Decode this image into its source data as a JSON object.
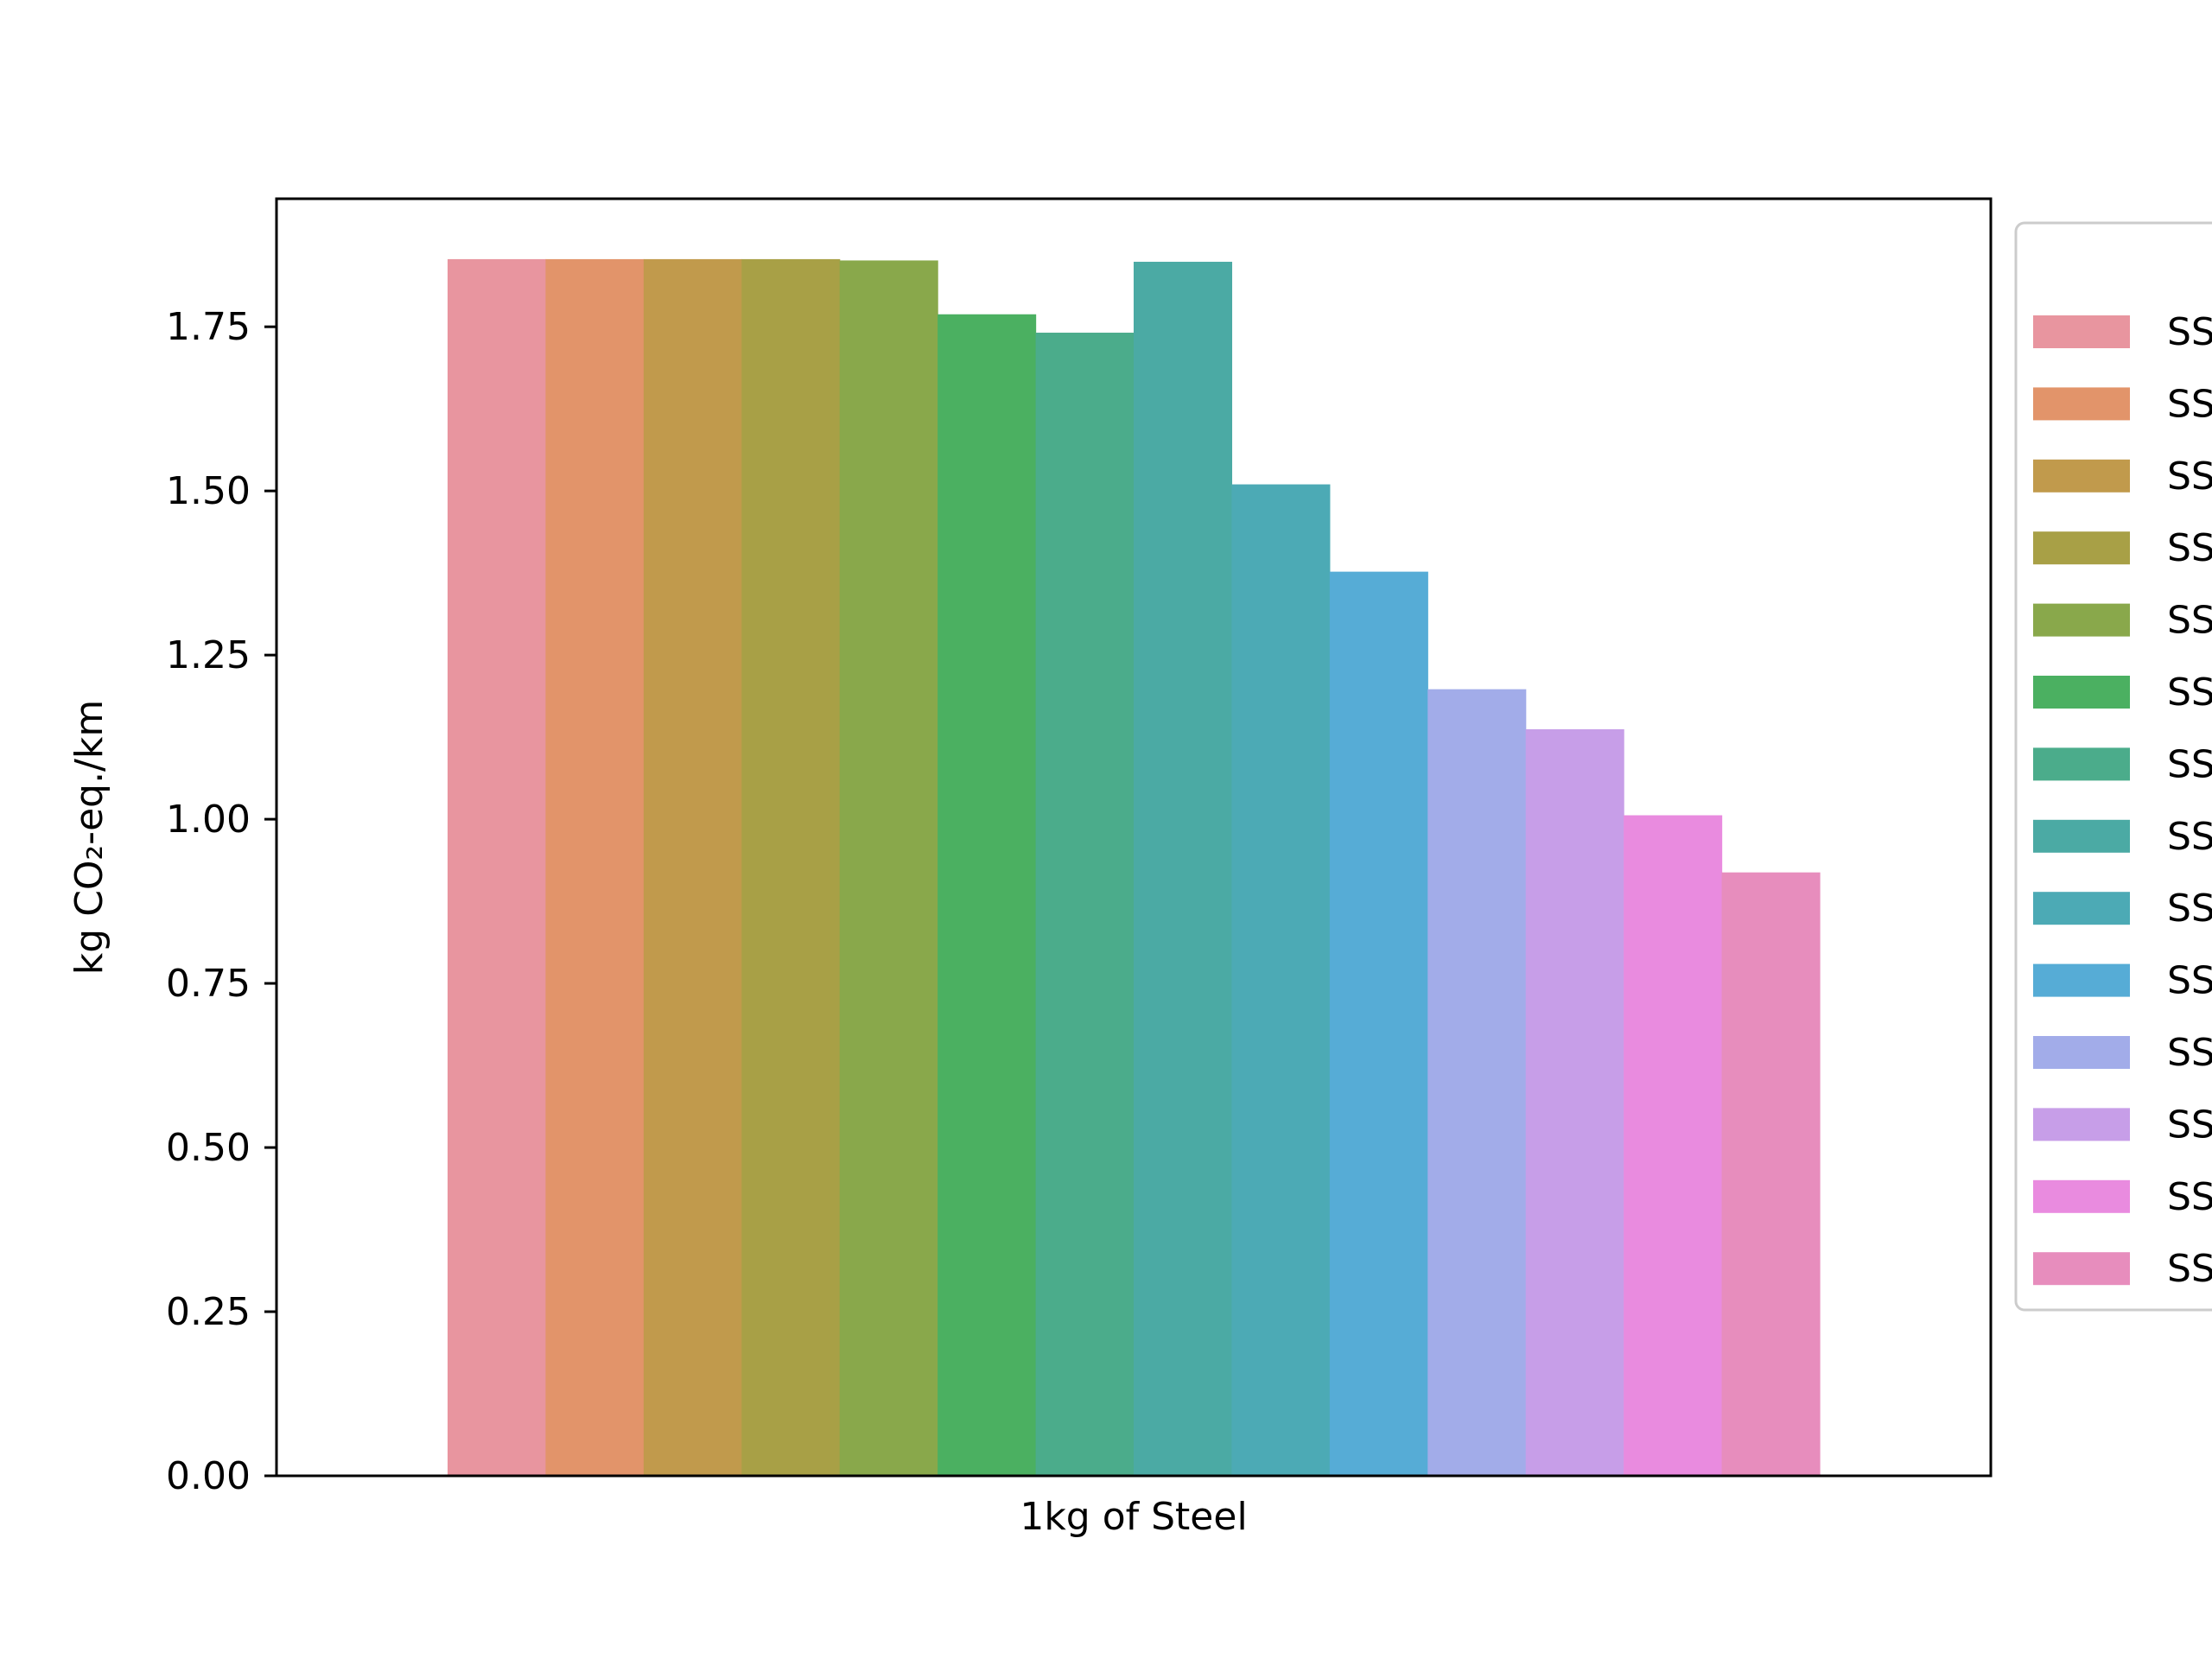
{
  "chart_data": {
    "type": "bar",
    "categories": [
      "1kg of Steel"
    ],
    "xlabel": "1kg of Steel",
    "ylabel": "kg CO₂-eq./km",
    "ylim": [
      0,
      1.945
    ],
    "yticks": [
      "0.00",
      "0.25",
      "0.50",
      "0.75",
      "1.00",
      "1.25",
      "1.50",
      "1.75"
    ],
    "grid": false,
    "legend_position": "right",
    "legend_labels": [
      "SS",
      "SS",
      "SS",
      "SS",
      "SS",
      "SS",
      "SS",
      "SS",
      "SS",
      "SS",
      "SS",
      "SS",
      "SS",
      "SS"
    ],
    "series": [
      {
        "color": "#e8959f",
        "values": [
          1.853
        ]
      },
      {
        "color": "#e2946a",
        "values": [
          1.853
        ]
      },
      {
        "color": "#c19a4c",
        "values": [
          1.853
        ]
      },
      {
        "color": "#a8a046",
        "values": [
          1.853
        ]
      },
      {
        "color": "#89a84b",
        "values": [
          1.851
        ]
      },
      {
        "color": "#4bb061",
        "values": [
          1.769
        ]
      },
      {
        "color": "#4bac8b",
        "values": [
          1.741
        ]
      },
      {
        "color": "#4baaa4",
        "values": [
          1.849
        ]
      },
      {
        "color": "#4caab5",
        "values": [
          1.51
        ]
      },
      {
        "color": "#56acd6",
        "values": [
          1.377
        ]
      },
      {
        "color": "#a2ace9",
        "values": [
          1.198
        ]
      },
      {
        "color": "#c79ee8",
        "values": [
          1.137
        ]
      },
      {
        "color": "#e98bdf",
        "values": [
          1.006
        ]
      },
      {
        "color": "#e78dbd",
        "values": [
          0.919
        ]
      }
    ]
  }
}
